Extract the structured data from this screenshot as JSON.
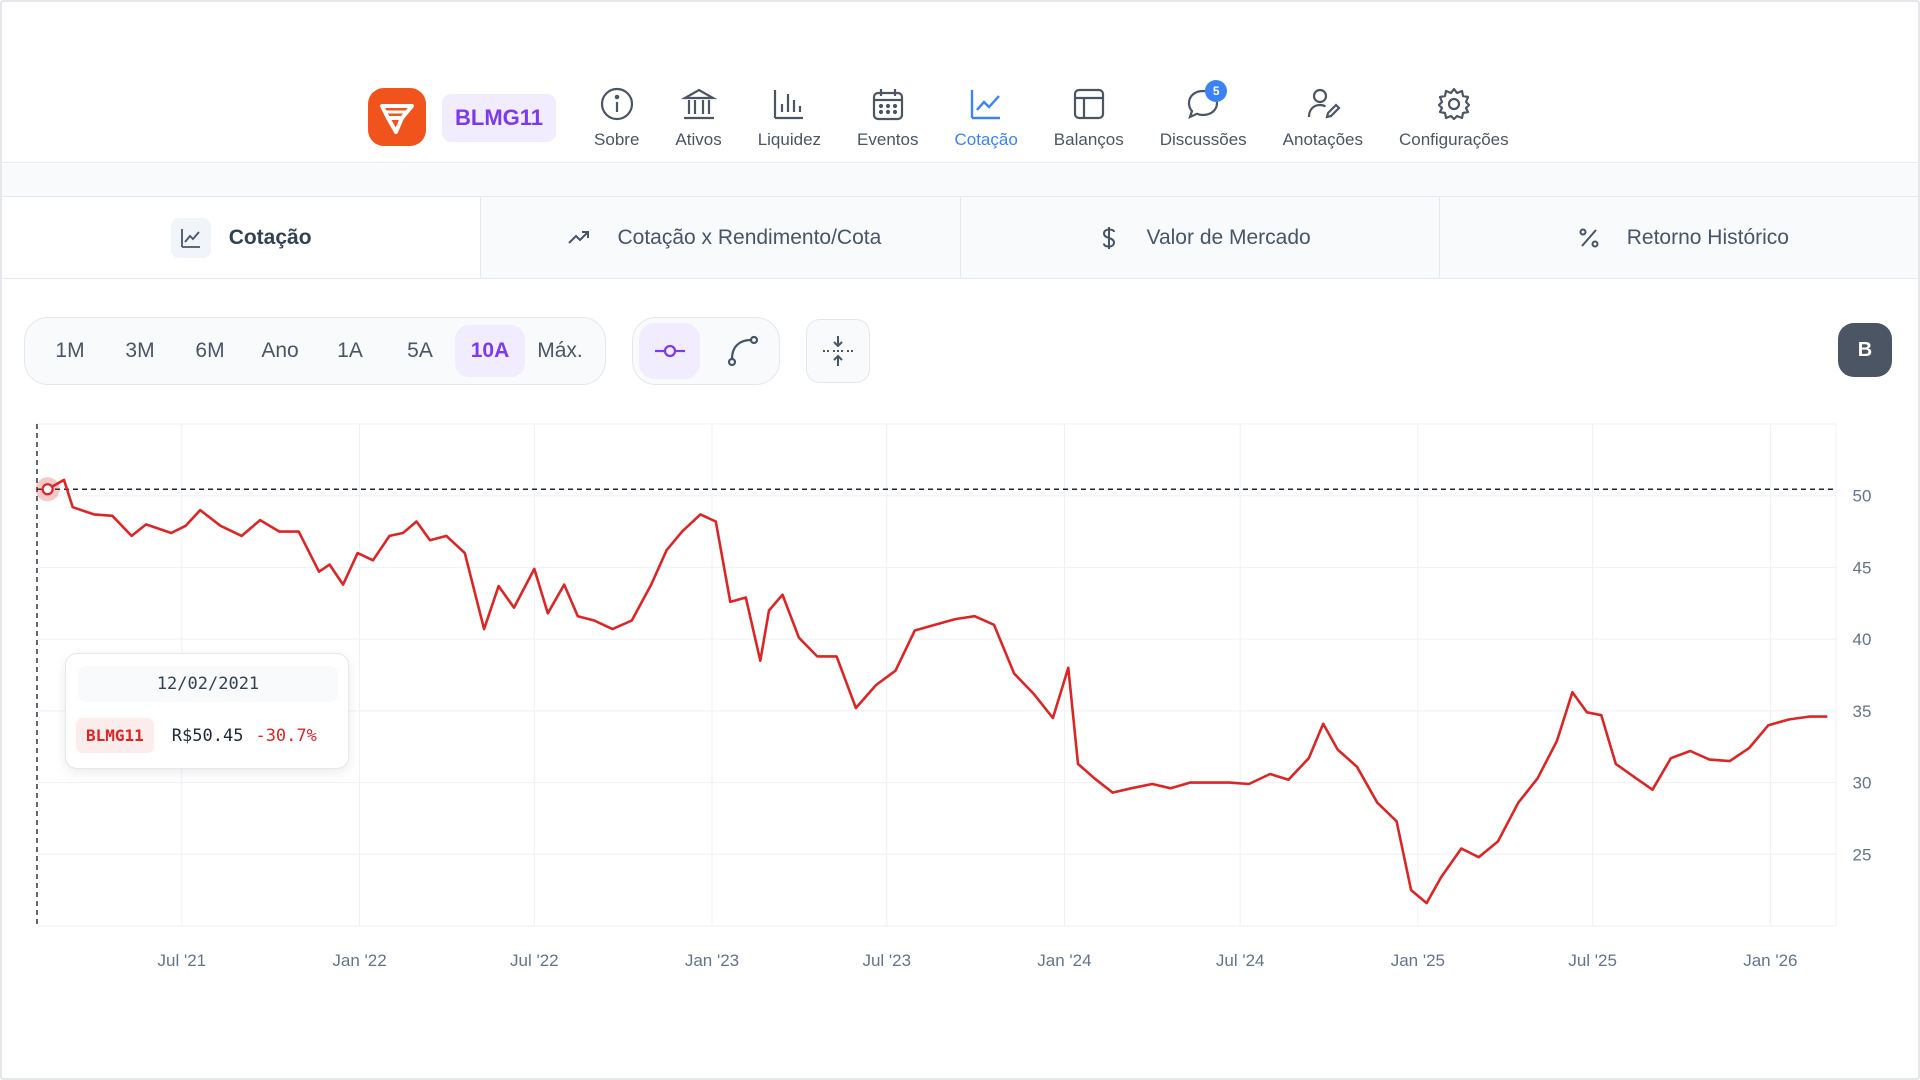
{
  "nav": {
    "ticker": "BLMG11",
    "items": [
      {
        "label": "Sobre",
        "icon": "info-icon"
      },
      {
        "label": "Ativos",
        "icon": "bank-icon"
      },
      {
        "label": "Liquidez",
        "icon": "bar-chart-icon"
      },
      {
        "label": "Eventos",
        "icon": "calendar-icon"
      },
      {
        "label": "Cotação",
        "icon": "line-chart-icon",
        "active": true
      },
      {
        "label": "Balanços",
        "icon": "layout-icon"
      },
      {
        "label": "Discussões",
        "icon": "chat-icon",
        "badge": "5"
      },
      {
        "label": "Anotações",
        "icon": "user-edit-icon"
      },
      {
        "label": "Configurações",
        "icon": "gear-icon"
      }
    ]
  },
  "tabs": [
    {
      "label": "Cotação",
      "icon": "line-chart-icon",
      "active": true
    },
    {
      "label": "Cotação x Rendimento/Cota",
      "icon": "trending-up-icon"
    },
    {
      "label": "Valor de Mercado",
      "icon": "dollar-icon"
    },
    {
      "label": "Retorno Histórico",
      "icon": "percent-icon"
    }
  ],
  "periods": [
    "1M",
    "3M",
    "6M",
    "Ano",
    "1A",
    "5A",
    "10A",
    "Máx."
  ],
  "active_period": "10A",
  "b_button": "B",
  "tooltip": {
    "date": "12/02/2021",
    "ticker": "BLMG11",
    "price": "R$50.45",
    "change": "-30.7%"
  },
  "colors": {
    "accent": "#7c3aed",
    "nav_active": "#3b82f6",
    "line": "#dc2626",
    "logo": "#f0531c"
  },
  "chart_data": {
    "type": "line",
    "ylim": [
      20,
      55
    ],
    "yticks": [
      25,
      30,
      35,
      40,
      45,
      50
    ],
    "xticks": [
      "Jul '21",
      "Jan '22",
      "Jul '22",
      "Jan '23",
      "Jul '23",
      "Jan '24",
      "Jul '24",
      "Jan '25",
      "Jul '25",
      "Jan '26"
    ],
    "reference_line": 50.45,
    "series": [
      {
        "points": [
          [
            "2021-02-12",
            50.45
          ],
          [
            "2021-03-01",
            51.1
          ],
          [
            "2021-03-10",
            49.2
          ],
          [
            "2021-04-01",
            48.7
          ],
          [
            "2021-04-20",
            48.6
          ],
          [
            "2021-05-10",
            47.2
          ],
          [
            "2021-05-25",
            48.0
          ],
          [
            "2021-06-20",
            47.4
          ],
          [
            "2021-07-05",
            47.9
          ],
          [
            "2021-07-20",
            49.0
          ],
          [
            "2021-08-10",
            47.9
          ],
          [
            "2021-09-01",
            47.2
          ],
          [
            "2021-09-20",
            48.3
          ],
          [
            "2021-10-10",
            47.5
          ],
          [
            "2021-10-30",
            47.5
          ],
          [
            "2021-11-20",
            44.7
          ],
          [
            "2021-12-01",
            45.2
          ],
          [
            "2021-12-15",
            43.8
          ],
          [
            "2021-12-30",
            46.0
          ],
          [
            "2022-01-15",
            45.5
          ],
          [
            "2022-02-01",
            47.2
          ],
          [
            "2022-02-15",
            47.4
          ],
          [
            "2022-03-01",
            48.2
          ],
          [
            "2022-03-15",
            46.9
          ],
          [
            "2022-04-01",
            47.2
          ],
          [
            "2022-04-20",
            46.0
          ],
          [
            "2022-05-10",
            40.7
          ],
          [
            "2022-05-25",
            43.7
          ],
          [
            "2022-06-10",
            42.2
          ],
          [
            "2022-07-01",
            44.9
          ],
          [
            "2022-07-15",
            41.8
          ],
          [
            "2022-08-01",
            43.8
          ],
          [
            "2022-08-15",
            41.6
          ],
          [
            "2022-09-01",
            41.3
          ],
          [
            "2022-09-20",
            40.7
          ],
          [
            "2022-10-10",
            41.3
          ],
          [
            "2022-10-30",
            43.8
          ],
          [
            "2022-11-15",
            46.2
          ],
          [
            "2022-12-01",
            47.5
          ],
          [
            "2022-12-20",
            48.7
          ],
          [
            "2023-01-05",
            48.2
          ],
          [
            "2023-01-20",
            42.6
          ],
          [
            "2023-02-05",
            42.9
          ],
          [
            "2023-02-20",
            38.5
          ],
          [
            "2023-03-01",
            42.0
          ],
          [
            "2023-03-15",
            43.1
          ],
          [
            "2023-04-01",
            40.1
          ],
          [
            "2023-04-20",
            38.8
          ],
          [
            "2023-05-10",
            38.8
          ],
          [
            "2023-05-30",
            35.2
          ],
          [
            "2023-06-20",
            36.8
          ],
          [
            "2023-07-10",
            37.8
          ],
          [
            "2023-07-30",
            40.6
          ],
          [
            "2023-08-20",
            41.0
          ],
          [
            "2023-09-10",
            41.4
          ],
          [
            "2023-09-30",
            41.6
          ],
          [
            "2023-10-20",
            41.0
          ],
          [
            "2023-11-10",
            37.6
          ],
          [
            "2023-11-30",
            36.2
          ],
          [
            "2023-12-20",
            34.5
          ],
          [
            "2024-01-05",
            38.0
          ],
          [
            "2024-01-15",
            31.3
          ],
          [
            "2024-02-01",
            30.3
          ],
          [
            "2024-02-20",
            29.3
          ],
          [
            "2024-03-10",
            29.6
          ],
          [
            "2024-04-01",
            29.9
          ],
          [
            "2024-04-20",
            29.6
          ],
          [
            "2024-05-10",
            30.0
          ],
          [
            "2024-06-01",
            30.0
          ],
          [
            "2024-06-20",
            30.0
          ],
          [
            "2024-07-10",
            29.9
          ],
          [
            "2024-08-01",
            30.6
          ],
          [
            "2024-08-20",
            30.2
          ],
          [
            "2024-09-10",
            31.7
          ],
          [
            "2024-09-25",
            34.1
          ],
          [
            "2024-10-10",
            32.3
          ],
          [
            "2024-10-30",
            31.1
          ],
          [
            "2024-11-20",
            28.6
          ],
          [
            "2024-12-10",
            27.3
          ],
          [
            "2024-12-25",
            22.5
          ],
          [
            "2025-01-10",
            21.6
          ],
          [
            "2025-01-25",
            23.4
          ],
          [
            "2025-02-15",
            25.4
          ],
          [
            "2025-03-05",
            24.8
          ],
          [
            "2025-03-25",
            25.9
          ],
          [
            "2025-04-15",
            28.6
          ],
          [
            "2025-05-05",
            30.3
          ],
          [
            "2025-05-25",
            32.9
          ],
          [
            "2025-06-10",
            36.3
          ],
          [
            "2025-06-25",
            34.9
          ],
          [
            "2025-07-10",
            34.7
          ],
          [
            "2025-07-25",
            31.3
          ],
          [
            "2025-08-15",
            30.3
          ],
          [
            "2025-09-01",
            29.5
          ],
          [
            "2025-09-20",
            31.7
          ],
          [
            "2025-10-10",
            32.2
          ],
          [
            "2025-10-30",
            31.6
          ],
          [
            "2025-11-20",
            31.5
          ],
          [
            "2025-12-10",
            32.4
          ],
          [
            "2025-12-30",
            34.0
          ],
          [
            "2026-01-20",
            34.4
          ],
          [
            "2026-02-10",
            34.6
          ],
          [
            "2026-03-01",
            34.6
          ]
        ]
      }
    ]
  }
}
